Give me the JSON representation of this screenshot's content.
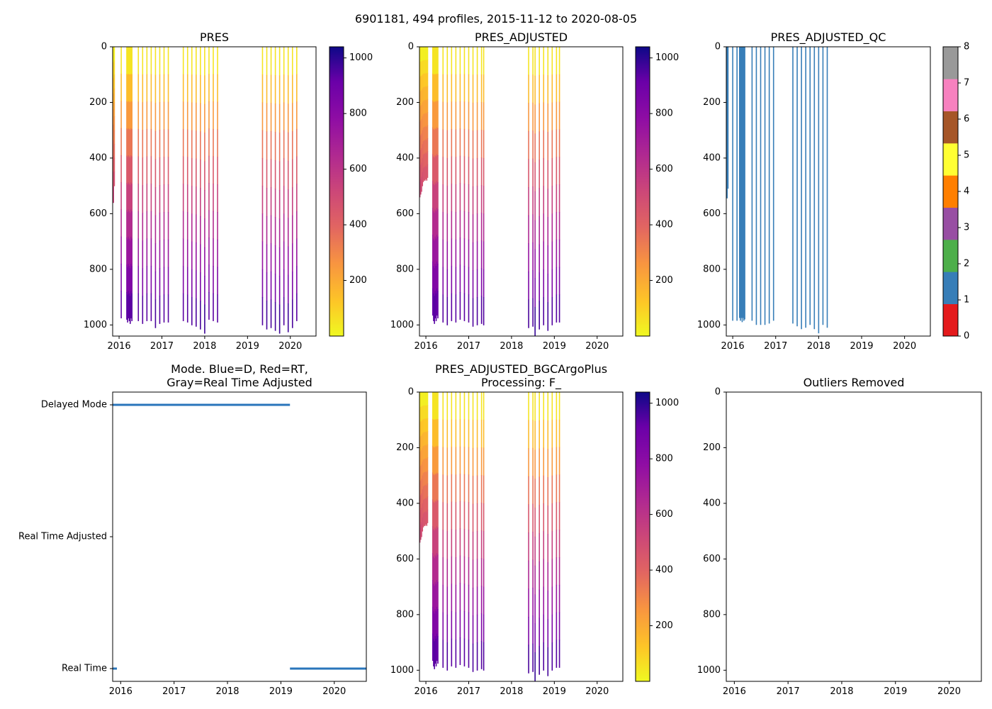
{
  "suptitle": "6901181, 494 profiles, 2015-11-12 to 2020-08-05",
  "colors": {
    "plasma_low": "#f0f921",
    "plasma_high": "#0d0887",
    "qc_profile": "#377eb8",
    "mode_line": "#2a75bb",
    "axis": "#000000"
  },
  "chart_data": [
    {
      "id": "pres",
      "type": "heatmap",
      "title": "PRES",
      "xlim": [
        2015.85,
        2020.6
      ],
      "ylim": [
        1040,
        0
      ],
      "xticks": [
        "2016",
        "2017",
        "2018",
        "2019",
        "2020"
      ],
      "yticks": [
        "0",
        "200",
        "400",
        "600",
        "800",
        "1000"
      ],
      "colorbar": {
        "range": [
          0,
          1040
        ],
        "ticks": [
          "200",
          "400",
          "600",
          "800",
          "1000"
        ]
      },
      "profiles": [
        {
          "date": 2015.87,
          "depth": 560
        },
        {
          "date": 2015.89,
          "depth": 500
        },
        {
          "date": 2016.05,
          "depth": 975
        },
        {
          "date": 2016.18,
          "depth": 980
        },
        {
          "date": 2016.2,
          "depth": 990
        },
        {
          "date": 2016.22,
          "depth": 975
        },
        {
          "date": 2016.24,
          "depth": 985
        },
        {
          "date": 2016.26,
          "depth": 995
        },
        {
          "date": 2016.28,
          "depth": 975
        },
        {
          "date": 2016.3,
          "depth": 985
        },
        {
          "date": 2016.45,
          "depth": 985
        },
        {
          "date": 2016.55,
          "depth": 995
        },
        {
          "date": 2016.65,
          "depth": 985
        },
        {
          "date": 2016.75,
          "depth": 985
        },
        {
          "date": 2016.85,
          "depth": 1010
        },
        {
          "date": 2016.95,
          "depth": 995
        },
        {
          "date": 2017.05,
          "depth": 990
        },
        {
          "date": 2017.15,
          "depth": 990
        },
        {
          "date": 2017.5,
          "depth": 985
        },
        {
          "date": 2017.6,
          "depth": 990
        },
        {
          "date": 2017.7,
          "depth": 1000
        },
        {
          "date": 2017.8,
          "depth": 1005
        },
        {
          "date": 2017.9,
          "depth": 1015
        },
        {
          "date": 2018.0,
          "depth": 1030
        },
        {
          "date": 2018.1,
          "depth": 980
        },
        {
          "date": 2018.2,
          "depth": 985
        },
        {
          "date": 2018.3,
          "depth": 990
        },
        {
          "date": 2019.35,
          "depth": 1000
        },
        {
          "date": 2019.45,
          "depth": 1015
        },
        {
          "date": 2019.55,
          "depth": 1010
        },
        {
          "date": 2019.65,
          "depth": 1020
        },
        {
          "date": 2019.75,
          "depth": 1030
        },
        {
          "date": 2019.85,
          "depth": 1000
        },
        {
          "date": 2019.95,
          "depth": 1025
        },
        {
          "date": 2020.05,
          "depth": 1010
        },
        {
          "date": 2020.15,
          "depth": 985
        }
      ]
    },
    {
      "id": "pres_adj",
      "type": "heatmap",
      "title": "PRES_ADJUSTED",
      "xlim": [
        2015.85,
        2020.6
      ],
      "ylim": [
        1040,
        0
      ],
      "xticks": [
        "2016",
        "2017",
        "2018",
        "2019",
        "2020"
      ],
      "yticks": [
        "0",
        "200",
        "400",
        "600",
        "800",
        "1000"
      ],
      "colorbar": {
        "range": [
          0,
          1040
        ],
        "ticks": [
          "200",
          "400",
          "600",
          "800",
          "1000"
        ]
      },
      "profiles": [
        {
          "date": 2015.86,
          "depth": 540
        },
        {
          "date": 2015.88,
          "depth": 530
        },
        {
          "date": 2015.9,
          "depth": 520
        },
        {
          "date": 2015.92,
          "depth": 500
        },
        {
          "date": 2015.94,
          "depth": 485
        },
        {
          "date": 2015.96,
          "depth": 480
        },
        {
          "date": 2015.98,
          "depth": 480
        },
        {
          "date": 2016.0,
          "depth": 475
        },
        {
          "date": 2016.02,
          "depth": 480
        },
        {
          "date": 2016.04,
          "depth": 470
        },
        {
          "date": 2016.16,
          "depth": 965
        },
        {
          "date": 2016.18,
          "depth": 985
        },
        {
          "date": 2016.2,
          "depth": 995
        },
        {
          "date": 2016.22,
          "depth": 975
        },
        {
          "date": 2016.24,
          "depth": 985
        },
        {
          "date": 2016.26,
          "depth": 965
        },
        {
          "date": 2016.28,
          "depth": 975
        },
        {
          "date": 2016.4,
          "depth": 990
        },
        {
          "date": 2016.5,
          "depth": 1000
        },
        {
          "date": 2016.6,
          "depth": 985
        },
        {
          "date": 2016.7,
          "depth": 990
        },
        {
          "date": 2016.8,
          "depth": 980
        },
        {
          "date": 2016.9,
          "depth": 985
        },
        {
          "date": 2017.0,
          "depth": 990
        },
        {
          "date": 2017.1,
          "depth": 1005
        },
        {
          "date": 2017.2,
          "depth": 1000
        },
        {
          "date": 2017.3,
          "depth": 995
        },
        {
          "date": 2017.35,
          "depth": 1000
        },
        {
          "date": 2018.4,
          "depth": 1010
        },
        {
          "date": 2018.5,
          "depth": 1005
        },
        {
          "date": 2018.55,
          "depth": 1040
        },
        {
          "date": 2018.65,
          "depth": 1015
        },
        {
          "date": 2018.75,
          "depth": 1000
        },
        {
          "date": 2018.85,
          "depth": 1020
        },
        {
          "date": 2018.95,
          "depth": 1000
        },
        {
          "date": 2019.05,
          "depth": 990
        },
        {
          "date": 2019.12,
          "depth": 990
        }
      ]
    },
    {
      "id": "pres_adj_qc",
      "type": "heatmap",
      "title": "PRES_ADJUSTED_QC",
      "xlim": [
        2015.85,
        2020.6
      ],
      "ylim": [
        1040,
        0
      ],
      "xticks": [
        "2016",
        "2017",
        "2018",
        "2019",
        "2020"
      ],
      "yticks": [
        "0",
        "200",
        "400",
        "600",
        "800",
        "1000"
      ],
      "colorbar": {
        "range": [
          0,
          8
        ],
        "ticks": [
          "0",
          "1",
          "2",
          "3",
          "4",
          "5",
          "6",
          "7",
          "8"
        ],
        "segments": [
          "#e41a1c",
          "#377eb8",
          "#4daf4a",
          "#984ea3",
          "#ff7f00",
          "#ffff33",
          "#a65628",
          "#f781bf",
          "#999999"
        ]
      },
      "profiles": [
        {
          "date": 2015.87,
          "depth": 545
        },
        {
          "date": 2015.89,
          "depth": 510
        },
        {
          "date": 2016.0,
          "depth": 985
        },
        {
          "date": 2016.1,
          "depth": 985
        },
        {
          "date": 2016.16,
          "depth": 975
        },
        {
          "date": 2016.18,
          "depth": 985
        },
        {
          "date": 2016.2,
          "depth": 975
        },
        {
          "date": 2016.22,
          "depth": 990
        },
        {
          "date": 2016.24,
          "depth": 975
        },
        {
          "date": 2016.26,
          "depth": 985
        },
        {
          "date": 2016.28,
          "depth": 980
        },
        {
          "date": 2016.45,
          "depth": 985
        },
        {
          "date": 2016.55,
          "depth": 1000
        },
        {
          "date": 2016.65,
          "depth": 1000
        },
        {
          "date": 2016.75,
          "depth": 1000
        },
        {
          "date": 2016.85,
          "depth": 995
        },
        {
          "date": 2016.95,
          "depth": 985
        },
        {
          "date": 2017.4,
          "depth": 995
        },
        {
          "date": 2017.5,
          "depth": 1005
        },
        {
          "date": 2017.6,
          "depth": 1015
        },
        {
          "date": 2017.7,
          "depth": 1010
        },
        {
          "date": 2017.8,
          "depth": 1000
        },
        {
          "date": 2017.9,
          "depth": 1015
        },
        {
          "date": 2018.0,
          "depth": 1030
        },
        {
          "date": 2018.1,
          "depth": 1000
        },
        {
          "date": 2018.2,
          "depth": 1010
        }
      ]
    },
    {
      "id": "mode",
      "type": "line",
      "title_lines": [
        "Mode. Blue=D, Red=RT,",
        "Gray=Real Time Adjusted"
      ],
      "xlim": [
        2015.85,
        2020.6
      ],
      "xticks": [
        "2016",
        "2017",
        "2018",
        "2019",
        "2020"
      ],
      "categories": [
        "Delayed Mode",
        "Real Time Adjusted",
        "Real Time"
      ],
      "series": [
        {
          "name": "Delayed Mode",
          "ranges": [
            [
              2015.85,
              2019.17
            ]
          ]
        },
        {
          "name": "Real Time Adjusted",
          "ranges": []
        },
        {
          "name": "Real Time",
          "ranges": [
            [
              2015.85,
              2015.93
            ],
            [
              2019.17,
              2020.6
            ]
          ]
        }
      ]
    },
    {
      "id": "pres_bgc",
      "type": "heatmap",
      "title_lines": [
        "PRES_ADJUSTED_BGCArgoPlus",
        "Processing: F_"
      ],
      "xlim": [
        2015.85,
        2020.6
      ],
      "ylim": [
        1040,
        0
      ],
      "xticks": [
        "2016",
        "2017",
        "2018",
        "2019",
        "2020"
      ],
      "yticks": [
        "0",
        "200",
        "400",
        "600",
        "800",
        "1000"
      ],
      "colorbar": {
        "range": [
          0,
          1040
        ],
        "ticks": [
          "200",
          "400",
          "600",
          "800",
          "1000"
        ]
      },
      "profiles": [
        {
          "date": 2015.86,
          "depth": 540
        },
        {
          "date": 2015.88,
          "depth": 530
        },
        {
          "date": 2015.9,
          "depth": 520
        },
        {
          "date": 2015.92,
          "depth": 500
        },
        {
          "date": 2015.94,
          "depth": 485
        },
        {
          "date": 2015.96,
          "depth": 480
        },
        {
          "date": 2015.98,
          "depth": 480
        },
        {
          "date": 2016.0,
          "depth": 475
        },
        {
          "date": 2016.02,
          "depth": 480
        },
        {
          "date": 2016.04,
          "depth": 470
        },
        {
          "date": 2016.16,
          "depth": 965
        },
        {
          "date": 2016.18,
          "depth": 985
        },
        {
          "date": 2016.2,
          "depth": 995
        },
        {
          "date": 2016.22,
          "depth": 975
        },
        {
          "date": 2016.24,
          "depth": 985
        },
        {
          "date": 2016.26,
          "depth": 965
        },
        {
          "date": 2016.28,
          "depth": 975
        },
        {
          "date": 2016.4,
          "depth": 990
        },
        {
          "date": 2016.5,
          "depth": 1000
        },
        {
          "date": 2016.6,
          "depth": 985
        },
        {
          "date": 2016.7,
          "depth": 990
        },
        {
          "date": 2016.8,
          "depth": 980
        },
        {
          "date": 2016.9,
          "depth": 985
        },
        {
          "date": 2017.0,
          "depth": 990
        },
        {
          "date": 2017.1,
          "depth": 1005
        },
        {
          "date": 2017.2,
          "depth": 1000
        },
        {
          "date": 2017.3,
          "depth": 995
        },
        {
          "date": 2017.35,
          "depth": 1000
        },
        {
          "date": 2018.4,
          "depth": 1010
        },
        {
          "date": 2018.5,
          "depth": 1005
        },
        {
          "date": 2018.55,
          "depth": 1040
        },
        {
          "date": 2018.65,
          "depth": 1015
        },
        {
          "date": 2018.75,
          "depth": 1000
        },
        {
          "date": 2018.85,
          "depth": 1020
        },
        {
          "date": 2018.95,
          "depth": 1000
        },
        {
          "date": 2019.05,
          "depth": 990
        },
        {
          "date": 2019.12,
          "depth": 990
        }
      ]
    },
    {
      "id": "outliers",
      "type": "scatter",
      "title": "Outliers Removed",
      "xlim": [
        2015.85,
        2020.6
      ],
      "ylim": [
        1040,
        0
      ],
      "xticks": [
        "2016",
        "2017",
        "2018",
        "2019",
        "2020"
      ],
      "yticks": [
        "0",
        "200",
        "400",
        "600",
        "800",
        "1000"
      ],
      "points": []
    }
  ]
}
